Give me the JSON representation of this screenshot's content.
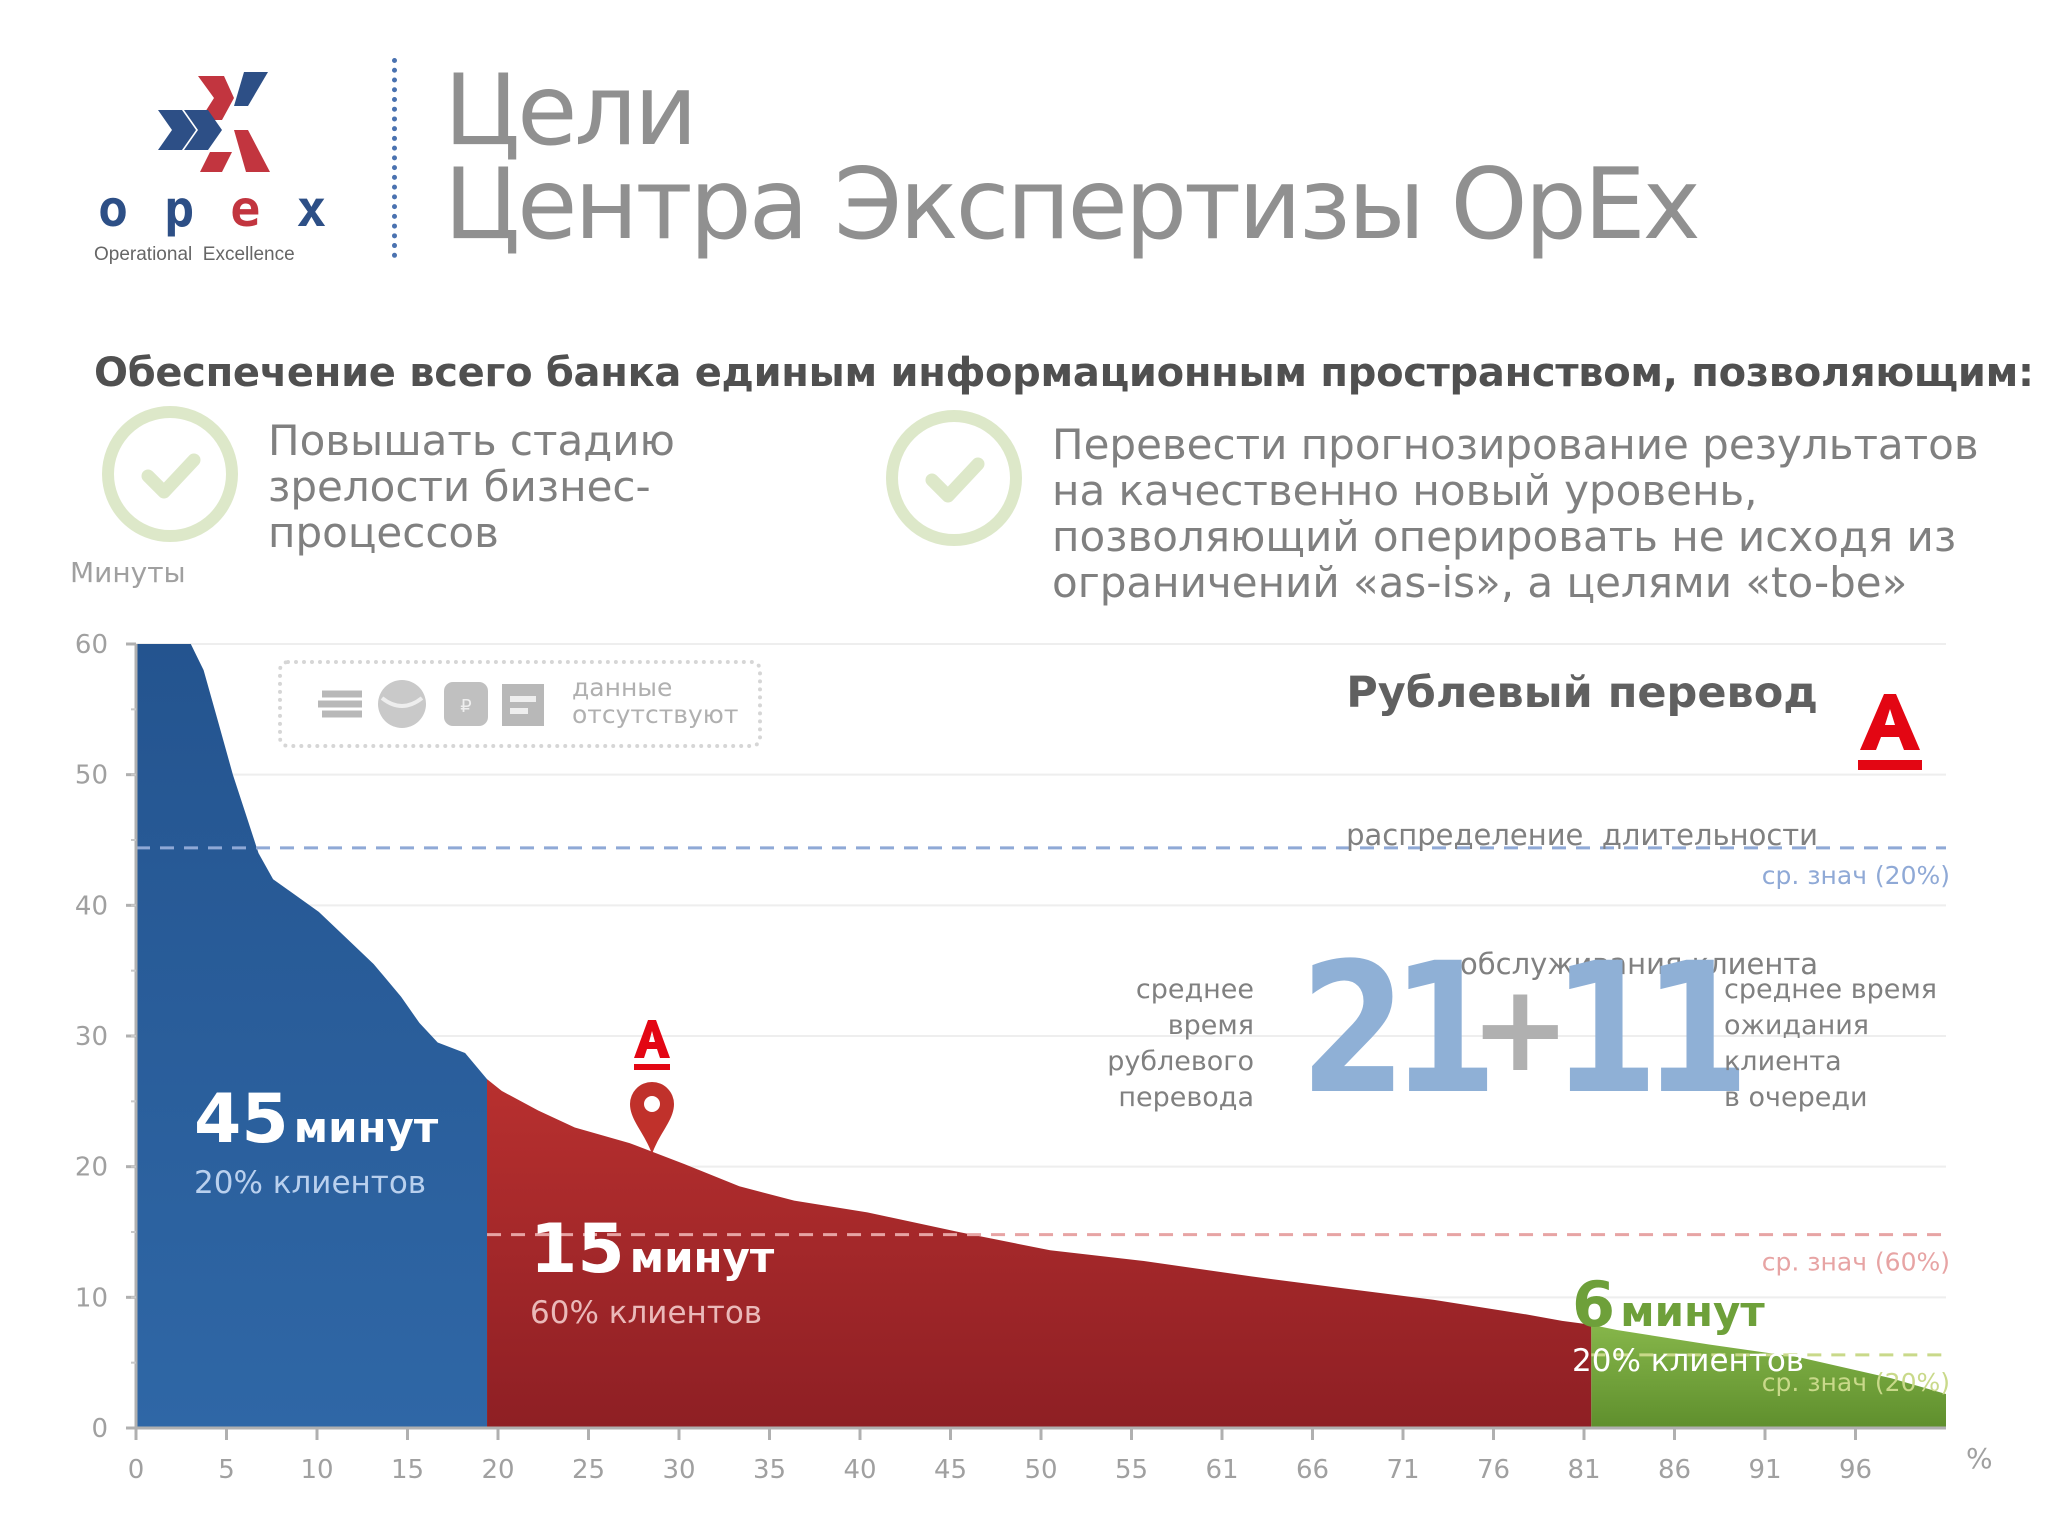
{
  "header": {
    "logo": {
      "word": [
        "o",
        "p",
        "e",
        "x"
      ],
      "sub": "Operational  Excellence"
    },
    "title_line1": "Цели",
    "title_line2": "Центра Экспертизы OpEx"
  },
  "subtitle": "Обеспечение всего банка единым информационным пространством, позволяющим:",
  "goals": [
    {
      "lines": [
        "Повышать стадию",
        "зрелости бизнес-",
        "процессов"
      ]
    },
    {
      "lines": [
        "Перевести прогнозирование результатов",
        "на качественно новый уровень,",
        "позволяющий оперировать не исходя из",
        "ограничений «as-is», а целями «to-be»"
      ]
    }
  ],
  "colors": {
    "blue": "#2d5c9a",
    "red": "#b32b2b",
    "green": "#6ea03a",
    "logo_blue": "#2d4f86",
    "logo_red": "#c2353f",
    "alfa_red": "#e30613",
    "big_numbers": "#8fb0d6"
  },
  "chart_data": {
    "type": "area",
    "title": "Рублевый перевод",
    "subtitle_lines": [
      "распределение  длительности",
      "обслуживания клиента"
    ],
    "ylabel": "Минуты",
    "xlabel": "%",
    "ylim": [
      0,
      60
    ],
    "xlim": [
      0,
      99
    ],
    "y_ticks": [
      0,
      10,
      20,
      30,
      40,
      50,
      60
    ],
    "x_tick_labels": [
      "0",
      "5",
      "10",
      "15",
      "20",
      "25",
      "30",
      "35",
      "40",
      "45",
      "50",
      "55",
      "61",
      "66",
      "71",
      "76",
      "81",
      "86",
      "91",
      "96"
    ],
    "curve": [
      [
        0,
        60
      ],
      [
        1,
        60
      ],
      [
        2,
        60
      ],
      [
        3,
        60
      ],
      [
        3.7,
        58
      ],
      [
        4.5,
        54
      ],
      [
        5.3,
        50
      ],
      [
        6,
        47
      ],
      [
        6.7,
        44
      ],
      [
        7.5,
        42
      ],
      [
        8.5,
        41
      ],
      [
        10,
        39.5
      ],
      [
        11.5,
        37.5
      ],
      [
        13,
        35.5
      ],
      [
        14.5,
        33
      ],
      [
        15.5,
        31
      ],
      [
        16.5,
        29.5
      ],
      [
        18,
        28.7
      ],
      [
        19.2,
        26.7
      ],
      [
        20,
        25.8
      ],
      [
        22,
        24.3
      ],
      [
        24,
        23
      ],
      [
        27,
        21.8
      ],
      [
        30,
        20.2
      ],
      [
        33,
        18.5
      ],
      [
        36,
        17.4
      ],
      [
        40,
        16.5
      ],
      [
        45,
        15
      ],
      [
        50,
        13.6
      ],
      [
        55,
        12.8
      ],
      [
        61,
        11.6
      ],
      [
        66,
        10.7
      ],
      [
        71,
        9.8
      ],
      [
        76,
        8.7
      ],
      [
        78,
        8.2
      ],
      [
        79.6,
        7.9
      ],
      [
        81,
        7.5
      ],
      [
        86,
        6.4
      ],
      [
        91,
        5.4
      ],
      [
        96,
        3.8
      ],
      [
        99,
        2.6
      ]
    ],
    "series": [
      {
        "name": "20% клиентов",
        "x_from": 0,
        "x_to": 19.2,
        "avg_minutes": 45,
        "label_big": "45",
        "label_unit": "минут",
        "label_share": "20% клиентов"
      },
      {
        "name": "60% клиентов",
        "x_from": 19.2,
        "x_to": 79.6,
        "avg_minutes": 15,
        "label_big": "15",
        "label_unit": "минут",
        "label_share": "60% клиентов"
      },
      {
        "name": "20% клиентов",
        "x_from": 79.6,
        "x_to": 99,
        "avg_minutes": 6,
        "label_big": "6",
        "label_unit": "минут",
        "label_share": "20% клиентов"
      }
    ],
    "avg_lines": [
      {
        "y": 44.4,
        "label": "ср. знач (20%)",
        "color": "#8fa9d6"
      },
      {
        "y": 14.8,
        "label": "ср. знач (60%)",
        "color": "#e7a4a4"
      },
      {
        "y": 5.6,
        "label": "ср. знач (20%)",
        "color": "#c9d98a"
      }
    ],
    "marker": {
      "x": 28.2,
      "y": 21
    },
    "no_data": {
      "label_lines": [
        "данные",
        "отсутствуют"
      ]
    },
    "breakdown": {
      "left_label": [
        "среднее",
        "время",
        "рублевого",
        "перевода"
      ],
      "value_a": "21",
      "plus": "+",
      "value_b": "11",
      "right_label": [
        "среднее время",
        "ожидания",
        "клиента",
        "в очереди"
      ]
    }
  }
}
